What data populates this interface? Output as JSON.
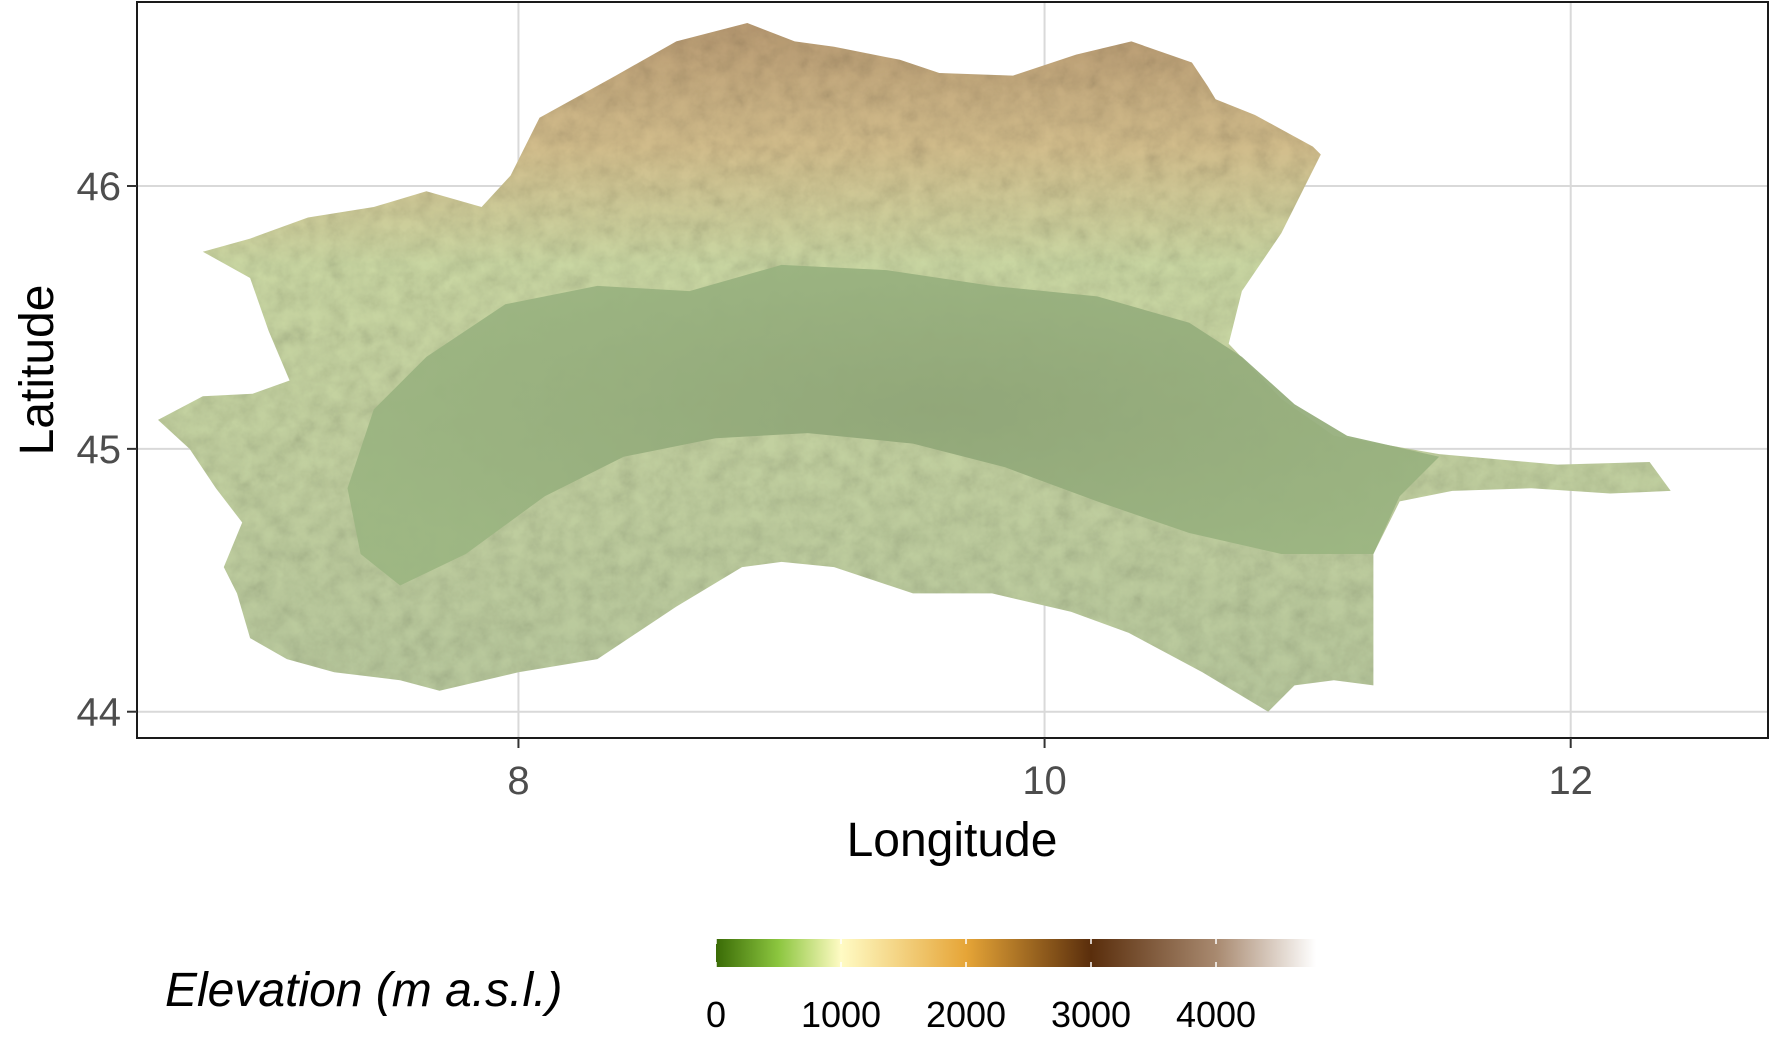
{
  "chart_data": {
    "type": "map",
    "xlabel": "Longitude",
    "ylabel": "Latitude",
    "xlim": [
      6.55,
      12.75
    ],
    "ylim": [
      43.9,
      46.7
    ],
    "x_ticks": [
      8,
      10,
      12
    ],
    "y_ticks": [
      44,
      45,
      46
    ],
    "grid": true,
    "legend": {
      "title": "Elevation (m a.s.l.)",
      "position": "bottom",
      "range": [
        0,
        4800
      ],
      "breaks": [
        0,
        1000,
        2000,
        3000,
        4000
      ],
      "labels": [
        "0",
        "1000",
        "2000",
        "3000",
        "4000"
      ],
      "gradient": [
        {
          "value": 0,
          "color": "#3a6b06"
        },
        {
          "value": 500,
          "color": "#8cc63f"
        },
        {
          "value": 1000,
          "color": "#fffbc4"
        },
        {
          "value": 2000,
          "color": "#e6a537"
        },
        {
          "value": 3000,
          "color": "#5a2e0c"
        },
        {
          "value": 4000,
          "color": "#a8896f"
        },
        {
          "value": 4800,
          "color": "#ffffff"
        }
      ]
    },
    "region_outline_lonlat": [
      [
        6.63,
        45.11
      ],
      [
        6.8,
        45.2
      ],
      [
        6.99,
        45.21
      ],
      [
        7.13,
        45.26
      ],
      [
        7.05,
        45.45
      ],
      [
        6.98,
        45.65
      ],
      [
        6.8,
        45.75
      ],
      [
        6.98,
        45.8
      ],
      [
        7.2,
        45.88
      ],
      [
        7.45,
        45.92
      ],
      [
        7.65,
        45.98
      ],
      [
        7.86,
        45.92
      ],
      [
        7.97,
        46.04
      ],
      [
        8.08,
        46.26
      ],
      [
        8.37,
        46.42
      ],
      [
        8.6,
        46.55
      ],
      [
        8.87,
        46.62
      ],
      [
        9.05,
        46.55
      ],
      [
        9.2,
        46.53
      ],
      [
        9.45,
        46.48
      ],
      [
        9.6,
        46.43
      ],
      [
        9.88,
        46.42
      ],
      [
        10.12,
        46.5
      ],
      [
        10.33,
        46.55
      ],
      [
        10.56,
        46.47
      ],
      [
        10.62,
        46.38
      ],
      [
        10.65,
        46.33
      ],
      [
        10.8,
        46.27
      ],
      [
        11.02,
        46.15
      ],
      [
        11.05,
        46.12
      ],
      [
        10.9,
        45.82
      ],
      [
        10.75,
        45.6
      ],
      [
        10.7,
        45.4
      ],
      [
        10.9,
        45.19
      ],
      [
        11.1,
        45.05
      ],
      [
        11.5,
        44.98
      ],
      [
        11.95,
        44.94
      ],
      [
        12.3,
        44.95
      ],
      [
        12.38,
        44.84
      ],
      [
        12.15,
        44.83
      ],
      [
        11.85,
        44.85
      ],
      [
        11.55,
        44.84
      ],
      [
        11.35,
        44.8
      ],
      [
        11.25,
        44.6
      ],
      [
        11.25,
        44.1
      ],
      [
        11.1,
        44.12
      ],
      [
        10.95,
        44.1
      ],
      [
        10.85,
        44.0
      ],
      [
        10.6,
        44.15
      ],
      [
        10.32,
        44.3
      ],
      [
        10.1,
        44.38
      ],
      [
        9.8,
        44.45
      ],
      [
        9.5,
        44.45
      ],
      [
        9.2,
        44.55
      ],
      [
        9.0,
        44.57
      ],
      [
        8.85,
        44.55
      ],
      [
        8.6,
        44.4
      ],
      [
        8.3,
        44.2
      ],
      [
        8.0,
        44.15
      ],
      [
        7.7,
        44.08
      ],
      [
        7.55,
        44.12
      ],
      [
        7.3,
        44.15
      ],
      [
        7.12,
        44.2
      ],
      [
        6.98,
        44.28
      ],
      [
        6.93,
        44.45
      ],
      [
        6.88,
        44.55
      ],
      [
        6.95,
        44.72
      ],
      [
        6.85,
        44.85
      ],
      [
        6.75,
        45.0
      ],
      [
        6.63,
        45.11
      ]
    ],
    "lowland_outline_lonlat": [
      [
        7.4,
        44.6
      ],
      [
        7.35,
        44.85
      ],
      [
        7.45,
        45.15
      ],
      [
        7.65,
        45.35
      ],
      [
        7.95,
        45.55
      ],
      [
        8.3,
        45.62
      ],
      [
        8.65,
        45.6
      ],
      [
        9.0,
        45.7
      ],
      [
        9.4,
        45.68
      ],
      [
        9.8,
        45.62
      ],
      [
        10.2,
        45.58
      ],
      [
        10.55,
        45.48
      ],
      [
        10.75,
        45.35
      ],
      [
        10.95,
        45.17
      ],
      [
        11.15,
        45.05
      ],
      [
        11.5,
        44.97
      ],
      [
        11.35,
        44.82
      ],
      [
        11.25,
        44.6
      ],
      [
        10.9,
        44.6
      ],
      [
        10.55,
        44.68
      ],
      [
        10.2,
        44.8
      ],
      [
        9.85,
        44.93
      ],
      [
        9.5,
        45.02
      ],
      [
        9.1,
        45.06
      ],
      [
        8.75,
        45.04
      ],
      [
        8.4,
        44.97
      ],
      [
        8.1,
        44.82
      ],
      [
        7.8,
        44.6
      ],
      [
        7.55,
        44.48
      ],
      [
        7.4,
        44.6
      ]
    ]
  }
}
